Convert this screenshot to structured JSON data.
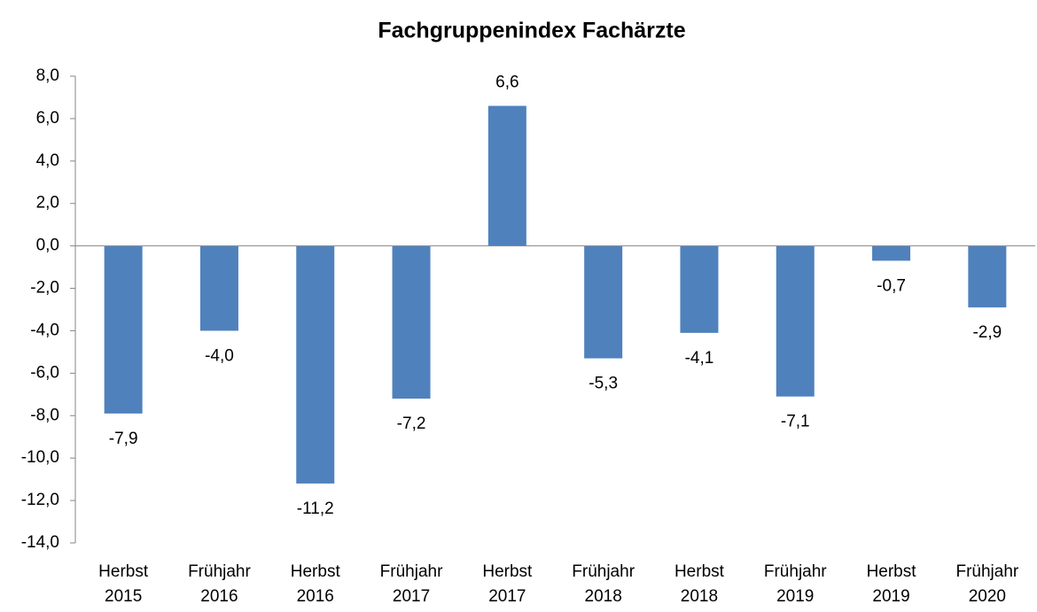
{
  "chart_data": {
    "type": "bar",
    "title": "Fachgruppenindex Fachärzte",
    "categories": [
      "Herbst 2015",
      "Frühjahr 2016",
      "Herbst 2016",
      "Frühjahr 2017",
      "Herbst 2017",
      "Frühjahr 2018",
      "Herbst 2018",
      "Frühjahr 2019",
      "Herbst 2019",
      "Frühjahr 2020"
    ],
    "values": [
      -7.9,
      -4.0,
      -11.2,
      -7.2,
      6.6,
      -5.3,
      -4.1,
      -7.1,
      -0.7,
      -2.9
    ],
    "value_labels": [
      "-7,9",
      "-4,0",
      "-11,2",
      "-7,2",
      "6,6",
      "-5,3",
      "-4,1",
      "-7,1",
      "-0,7",
      "-2,9"
    ],
    "color": "#4f81bd",
    "ylim": [
      -14,
      8
    ],
    "yticks": [
      {
        "value": -14,
        "label": "-14,0"
      },
      {
        "value": -12,
        "label": "-12,0"
      },
      {
        "value": -10,
        "label": "-10,0"
      },
      {
        "value": -8,
        "label": "-8,0"
      },
      {
        "value": -6,
        "label": "-6,0"
      },
      {
        "value": -4,
        "label": "-4,0"
      },
      {
        "value": -2,
        "label": "-2,0"
      },
      {
        "value": 0,
        "label": "0,0"
      },
      {
        "value": 2,
        "label": "2,0"
      },
      {
        "value": 4,
        "label": "4,0"
      },
      {
        "value": 6,
        "label": "6,0"
      },
      {
        "value": 8,
        "label": "8,0"
      }
    ],
    "grid": false
  }
}
